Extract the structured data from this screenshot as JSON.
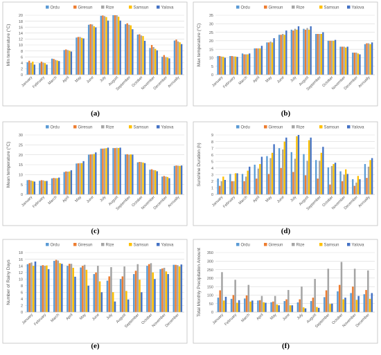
{
  "colors": {
    "Ordu": "#5b9bd5",
    "Giresun": "#ed7d31",
    "Rize": "#a5a5a5",
    "Samsun": "#ffc000",
    "Yalova": "#4472c4",
    "grid": "#d9d9d9",
    "axis_text": "#595959",
    "frame": "#bfbfbf"
  },
  "chart_data": [
    {
      "id": "a",
      "caption": "(a)",
      "type": "bar",
      "ylabel": "Min temperature (°C)",
      "xlabel": "",
      "ylim": [
        0,
        20
      ],
      "yticks": [
        0,
        2,
        4,
        6,
        8,
        10,
        12,
        14,
        16,
        18,
        20
      ],
      "grid": true,
      "legend": "top",
      "categories": [
        "January",
        "February",
        "March",
        "April",
        "May",
        "June",
        "July",
        "August",
        "September",
        "October",
        "November",
        "December",
        "Annually"
      ],
      "series": [
        {
          "name": "Ordu",
          "values": [
            4.2,
            3.9,
            5.4,
            8.3,
            12.5,
            16.8,
            19.8,
            20.0,
            17.0,
            13.5,
            9.0,
            6.0,
            11.5
          ]
        },
        {
          "name": "Giresun",
          "values": [
            4.7,
            4.4,
            5.3,
            8.5,
            12.7,
            17.0,
            19.9,
            20.0,
            17.3,
            13.6,
            10.0,
            6.6,
            11.8
          ]
        },
        {
          "name": "Rize",
          "values": [
            4.0,
            4.1,
            5.0,
            8.3,
            12.7,
            16.9,
            19.7,
            20.0,
            16.8,
            13.2,
            9.3,
            5.9,
            11.2
          ]
        },
        {
          "name": "Samsun",
          "values": [
            4.4,
            3.9,
            4.8,
            8.1,
            12.4,
            16.3,
            19.4,
            19.5,
            16.6,
            13.0,
            8.7,
            5.8,
            10.9
          ]
        },
        {
          "name": "Yalova",
          "values": [
            3.4,
            3.4,
            4.6,
            7.8,
            12.2,
            15.9,
            18.2,
            18.2,
            15.3,
            11.4,
            8.2,
            5.5,
            10.3
          ]
        }
      ]
    },
    {
      "id": "b",
      "caption": "(b)",
      "type": "bar",
      "ylabel": "Max temperature (°C)",
      "xlabel": "",
      "ylim": [
        0,
        35
      ],
      "yticks": [
        0,
        5,
        10,
        15,
        20,
        25,
        30,
        35
      ],
      "grid": true,
      "legend": "top",
      "categories": [
        "January",
        "February",
        "March",
        "April",
        "May",
        "June",
        "July",
        "August",
        "September",
        "October",
        "November",
        "December",
        "Annually"
      ],
      "series": [
        {
          "name": "Ordu",
          "values": [
            11.0,
            11.0,
            12.5,
            15.5,
            19.0,
            23.5,
            26.5,
            27.0,
            24.0,
            20.0,
            16.5,
            13.0,
            18.0
          ]
        },
        {
          "name": "Giresun",
          "values": [
            11.0,
            11.0,
            12.0,
            15.5,
            19.0,
            23.5,
            26.0,
            26.5,
            24.0,
            20.0,
            16.5,
            13.0,
            18.5
          ]
        },
        {
          "name": "Rize",
          "values": [
            10.7,
            10.8,
            12.0,
            15.5,
            19.5,
            24.0,
            27.0,
            27.5,
            24.0,
            20.0,
            16.5,
            13.0,
            18.5
          ]
        },
        {
          "name": "Samsun",
          "values": [
            10.6,
            10.7,
            12.0,
            15.5,
            19.0,
            23.5,
            26.5,
            26.5,
            24.0,
            20.0,
            16.0,
            12.5,
            18.0
          ]
        },
        {
          "name": "Yalova",
          "values": [
            10.0,
            10.5,
            12.5,
            17.0,
            21.5,
            26.0,
            28.5,
            28.5,
            25.0,
            20.5,
            16.5,
            12.0,
            19.0
          ]
        }
      ]
    },
    {
      "id": "c",
      "caption": "(c)",
      "type": "bar",
      "ylabel": "Mean temperature (°C)",
      "xlabel": "",
      "ylim": [
        0,
        30
      ],
      "yticks": [
        0,
        5,
        10,
        15,
        20,
        25,
        30
      ],
      "grid": true,
      "legend": "top",
      "categories": [
        "January",
        "February",
        "March",
        "April",
        "May",
        "June",
        "July",
        "August",
        "September",
        "October",
        "November",
        "December",
        "Annually"
      ],
      "series": [
        {
          "name": "Ordu",
          "values": [
            7.2,
            6.9,
            8.1,
            11.3,
            15.6,
            20.1,
            23.1,
            23.4,
            20.2,
            16.2,
            12.5,
            9.0,
            14.4
          ]
        },
        {
          "name": "Giresun",
          "values": [
            7.3,
            7.2,
            8.3,
            11.6,
            15.7,
            20.2,
            23.1,
            23.4,
            20.3,
            16.4,
            12.7,
            9.3,
            14.6
          ]
        },
        {
          "name": "Rize",
          "values": [
            7.0,
            7.1,
            8.2,
            11.5,
            15.8,
            20.3,
            23.2,
            23.5,
            20.1,
            16.3,
            12.3,
            9.0,
            14.5
          ]
        },
        {
          "name": "Samsun",
          "values": [
            6.8,
            6.8,
            8.2,
            11.6,
            15.8,
            20.4,
            23.3,
            23.4,
            20.2,
            16.1,
            12.2,
            8.8,
            14.4
          ]
        },
        {
          "name": "Yalova",
          "values": [
            6.5,
            6.8,
            8.5,
            12.2,
            16.8,
            21.2,
            23.6,
            23.6,
            20.1,
            15.8,
            11.7,
            8.2,
            14.6
          ]
        }
      ]
    },
    {
      "id": "d",
      "caption": "(d)",
      "type": "bar",
      "ylabel": "Sunshine Duration (h)",
      "xlabel": "",
      "ylim": [
        0,
        9
      ],
      "yticks": [
        0,
        1,
        2,
        3,
        4,
        5,
        6,
        7,
        8,
        9
      ],
      "grid": true,
      "legend": "top",
      "categories": [
        "January",
        "February",
        "March",
        "April",
        "May",
        "June",
        "July",
        "August",
        "September",
        "October",
        "November",
        "December",
        "Annually"
      ],
      "series": [
        {
          "name": "Ordu",
          "values": [
            2.4,
            3.1,
            3.1,
            4.5,
            5.8,
            7.0,
            6.4,
            6.1,
            5.2,
            4.1,
            3.5,
            2.3,
            4.6
          ]
        },
        {
          "name": "Giresun",
          "values": [
            1.3,
            2.0,
            2.0,
            2.4,
            3.1,
            4.0,
            3.4,
            2.9,
            2.4,
            1.5,
            2.0,
            1.3,
            2.5
          ]
        },
        {
          "name": "Rize",
          "values": [
            2.0,
            2.0,
            2.7,
            3.9,
            5.5,
            6.8,
            5.4,
            5.1,
            5.1,
            4.3,
            3.0,
            1.8,
            4.2
          ]
        },
        {
          "name": "Samsun",
          "values": [
            2.7,
            3.2,
            3.6,
            4.6,
            6.3,
            8.0,
            8.8,
            8.2,
            6.3,
            4.6,
            3.8,
            2.8,
            5.2
          ]
        },
        {
          "name": "Yalova",
          "values": [
            2.2,
            3.2,
            4.2,
            5.7,
            7.6,
            8.6,
            9.0,
            8.6,
            7.2,
            4.8,
            3.1,
            2.3,
            5.5
          ]
        }
      ]
    },
    {
      "id": "e",
      "caption": "(e)",
      "type": "bar",
      "ylabel": "Number of Rainy Days",
      "xlabel": "",
      "ylim": [
        0,
        18
      ],
      "yticks": [
        0,
        2,
        4,
        6,
        8,
        10,
        12,
        14,
        16,
        18
      ],
      "grid": true,
      "legend": "top",
      "categories": [
        "January",
        "February",
        "March",
        "April",
        "May",
        "June",
        "July",
        "August",
        "September",
        "October",
        "November",
        "December"
      ],
      "series": [
        {
          "name": "Ordu",
          "values": [
            14.5,
            14.0,
            15.5,
            14.0,
            13.5,
            11.5,
            9.5,
            10.0,
            11.5,
            14.0,
            13.0,
            14.3
          ]
        },
        {
          "name": "Giresun",
          "values": [
            14.8,
            14.2,
            15.8,
            14.6,
            14.0,
            12.0,
            10.8,
            10.8,
            12.5,
            14.5,
            13.2,
            14.3
          ]
        },
        {
          "name": "Rize",
          "values": [
            15.0,
            14.0,
            15.6,
            14.6,
            14.3,
            14.0,
            13.6,
            13.8,
            14.5,
            14.8,
            13.4,
            14.2
          ]
        },
        {
          "name": "Samsun",
          "values": [
            14.0,
            14.1,
            14.8,
            13.4,
            12.8,
            9.3,
            6.0,
            6.4,
            9.8,
            12.0,
            12.3,
            13.8
          ]
        },
        {
          "name": "Yalova",
          "values": [
            15.3,
            13.0,
            14.6,
            10.7,
            8.0,
            6.0,
            3.2,
            3.8,
            6.0,
            10.0,
            11.5,
            14.4
          ]
        }
      ]
    },
    {
      "id": "f",
      "caption": "(f)",
      "type": "bar",
      "ylabel": "Total Monthly Precipitation Amount",
      "xlabel": "",
      "ylim": [
        0,
        350
      ],
      "yticks": [
        0,
        50,
        100,
        150,
        200,
        250,
        300,
        350
      ],
      "grid": true,
      "legend": "top",
      "categories": [
        "January",
        "February",
        "March",
        "April",
        "May",
        "June",
        "July",
        "August",
        "September",
        "October",
        "November",
        "December"
      ],
      "series": [
        {
          "name": "Ordu",
          "values": [
            85,
            78,
            80,
            68,
            58,
            65,
            57,
            65,
            88,
            122,
            112,
            105
          ]
        },
        {
          "name": "Giresun",
          "values": [
            128,
            100,
            98,
            70,
            62,
            75,
            75,
            85,
            128,
            160,
            150,
            130
          ]
        },
        {
          "name": "Rize",
          "values": [
            235,
            190,
            160,
            95,
            95,
            130,
            150,
            195,
            255,
            295,
            255,
            245
          ]
        },
        {
          "name": "Samsun",
          "values": [
            68,
            55,
            62,
            58,
            45,
            40,
            28,
            30,
            48,
            75,
            72,
            78
          ]
        },
        {
          "name": "Yalova",
          "values": [
            90,
            70,
            68,
            55,
            40,
            40,
            22,
            25,
            50,
            85,
            95,
            112
          ]
        }
      ]
    }
  ]
}
